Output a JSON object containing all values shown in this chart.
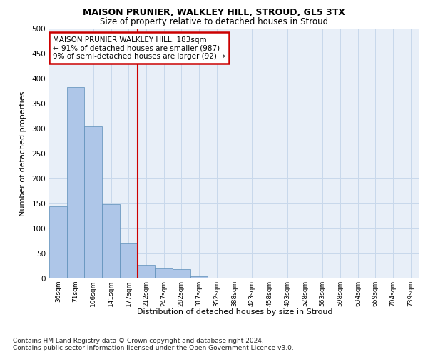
{
  "title1": "MAISON PRUNIER, WALKLEY HILL, STROUD, GL5 3TX",
  "title2": "Size of property relative to detached houses in Stroud",
  "xlabel": "Distribution of detached houses by size in Stroud",
  "ylabel": "Number of detached properties",
  "bin_labels": [
    "36sqm",
    "71sqm",
    "106sqm",
    "141sqm",
    "177sqm",
    "212sqm",
    "247sqm",
    "282sqm",
    "317sqm",
    "352sqm",
    "388sqm",
    "423sqm",
    "458sqm",
    "493sqm",
    "528sqm",
    "563sqm",
    "598sqm",
    "634sqm",
    "669sqm",
    "704sqm",
    "739sqm"
  ],
  "bar_values": [
    145,
    383,
    305,
    148,
    70,
    27,
    20,
    18,
    5,
    1,
    0,
    0,
    0,
    0,
    0,
    0,
    0,
    0,
    0,
    1,
    0
  ],
  "bar_color": "#aec6e8",
  "bar_edge_color": "#5b8db8",
  "grid_color": "#c8d8eb",
  "background_color": "#e8eff8",
  "vline_color": "#cc0000",
  "vline_pos": 4.5,
  "annotation_text": "MAISON PRUNIER WALKLEY HILL: 183sqm\n← 91% of detached houses are smaller (987)\n9% of semi-detached houses are larger (92) →",
  "annotation_box_color": "#ffffff",
  "annotation_box_edge": "#cc0000",
  "footnote": "Contains HM Land Registry data © Crown copyright and database right 2024.\nContains public sector information licensed under the Open Government Licence v3.0.",
  "ylim": [
    0,
    500
  ],
  "yticks": [
    0,
    50,
    100,
    150,
    200,
    250,
    300,
    350,
    400,
    450,
    500
  ]
}
